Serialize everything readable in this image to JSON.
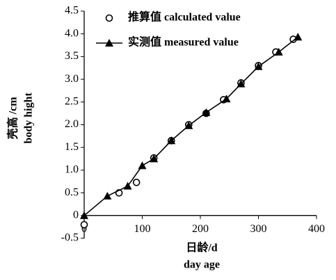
{
  "chart_data": {
    "type": "scatter",
    "x_label": [
      "日龄/d",
      "day age"
    ],
    "y_label": [
      "壳高 /cm",
      "body hight"
    ],
    "xlim": [
      0,
      400
    ],
    "xticks": [
      0,
      100,
      200,
      300,
      400
    ],
    "ylim": [
      -0.5,
      4.5
    ],
    "yticks": [
      -0.5,
      0,
      0.5,
      {
        "value": 1,
        "label": "1.0"
      },
      1.5,
      {
        "value": 2,
        "label": "2.0"
      },
      2.5,
      {
        "value": 3,
        "label": "3.0"
      },
      3.5,
      {
        "value": 4,
        "label": "4.0"
      },
      4.5
    ],
    "legend": "upper left",
    "series": [
      {
        "name": "推算值 calculated value",
        "color": "#000000",
        "marker": "circle",
        "line": false,
        "x": [
          0,
          60,
          90,
          120,
          150,
          180,
          210,
          240,
          270,
          300,
          330,
          360
        ],
        "values": [
          -0.2,
          0.5,
          0.73,
          1.27,
          1.65,
          2.0,
          2.25,
          2.55,
          2.92,
          3.3,
          3.6,
          3.88
        ]
      },
      {
        "name": "实测值 measured value",
        "color": "#000000",
        "marker": "triangle",
        "line": true,
        "x": [
          0,
          40,
          75,
          100,
          120,
          150,
          180,
          210,
          245,
          270,
          300,
          335,
          368
        ],
        "values": [
          0,
          0.43,
          0.65,
          1.1,
          1.25,
          1.65,
          1.98,
          2.27,
          2.57,
          2.9,
          3.28,
          3.6,
          3.93
        ]
      }
    ]
  }
}
